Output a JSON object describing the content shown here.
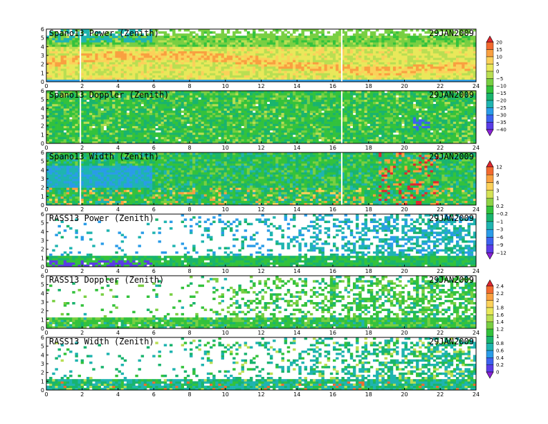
{
  "chart_data": [
    {
      "type": "heatmap",
      "title": "Spano13 Power (Zenith)",
      "date": "29JAN2009",
      "x_ticks": [
        "0",
        "2",
        "4",
        "6",
        "8",
        "10",
        "12",
        "14",
        "16",
        "18",
        "20",
        "22",
        "24"
      ],
      "y_ticks": [
        "0",
        "1",
        "2",
        "3",
        "4",
        "5",
        "6"
      ],
      "xlim": [
        0,
        24
      ],
      "ylim": [
        0,
        6
      ],
      "colorbar": "cb1",
      "pattern": "power_spano",
      "grid": false,
      "legend": "right"
    },
    {
      "type": "heatmap",
      "title": "Spano13 Doppler (Zenith)",
      "date": "29JAN2009",
      "x_ticks": [
        "0",
        "2",
        "4",
        "6",
        "8",
        "10",
        "12",
        "14",
        "16",
        "18",
        "20",
        "22",
        "24"
      ],
      "y_ticks": [
        "0",
        "1",
        "2",
        "3",
        "4",
        "5",
        "6"
      ],
      "xlim": [
        0,
        24
      ],
      "ylim": [
        0,
        6
      ],
      "colorbar": "cb1",
      "pattern": "doppler_spano",
      "grid": false,
      "legend": "right"
    },
    {
      "type": "heatmap",
      "title": "Spano13 Width (Zenith)",
      "date": "29JAN2009",
      "x_ticks": [
        "0",
        "2",
        "4",
        "6",
        "8",
        "10",
        "12",
        "14",
        "16",
        "18",
        "20",
        "22",
        "24"
      ],
      "y_ticks": [
        "0",
        "1",
        "2",
        "3",
        "4",
        "5",
        "6"
      ],
      "xlim": [
        0,
        24
      ],
      "ylim": [
        0,
        6
      ],
      "colorbar": "cb2",
      "pattern": "width_spano",
      "grid": false,
      "legend": "right"
    },
    {
      "type": "heatmap",
      "title": "RASS13 Power (Zenith)",
      "date": "29JAN2009",
      "x_ticks": [
        "0",
        "2",
        "4",
        "6",
        "8",
        "10",
        "12",
        "14",
        "16",
        "18",
        "20",
        "22",
        "24"
      ],
      "y_ticks": [
        "0",
        "1",
        "2",
        "3",
        "4",
        "5",
        "6"
      ],
      "xlim": [
        0,
        24
      ],
      "ylim": [
        0,
        6
      ],
      "colorbar": "cb2",
      "pattern": "power_rass",
      "grid": false,
      "legend": "right"
    },
    {
      "type": "heatmap",
      "title": "RASS13 Doppler (Zenith)",
      "date": "29JAN2009",
      "x_ticks": [
        "0",
        "2",
        "4",
        "6",
        "8",
        "10",
        "12",
        "14",
        "16",
        "18",
        "20",
        "22",
        "24"
      ],
      "y_ticks": [
        "0",
        "1",
        "2",
        "3",
        "4",
        "5",
        "6"
      ],
      "xlim": [
        0,
        24
      ],
      "ylim": [
        0,
        6
      ],
      "colorbar": "cb3",
      "pattern": "doppler_rass",
      "grid": false,
      "legend": "right"
    },
    {
      "type": "heatmap",
      "title": "RASS13 Width (Zenith)",
      "date": "29JAN2009",
      "x_ticks": [
        "0",
        "2",
        "4",
        "6",
        "8",
        "10",
        "12",
        "14",
        "16",
        "18",
        "20",
        "22",
        "24"
      ],
      "y_ticks": [
        "0",
        "1",
        "2",
        "3",
        "4",
        "5",
        "6"
      ],
      "xlim": [
        0,
        24
      ],
      "ylim": [
        0,
        6
      ],
      "colorbar": "cb3",
      "pattern": "width_rass",
      "grid": false,
      "legend": "right"
    }
  ],
  "colorbars": {
    "cb1": {
      "labels": [
        "20",
        "15",
        "10",
        "5",
        "0",
        "−5",
        "−10",
        "−15",
        "−20",
        "−25",
        "−30",
        "−35",
        "−40"
      ],
      "colors": [
        "#e0262f",
        "#f26a2f",
        "#f9a040",
        "#fbd15a",
        "#e9e85a",
        "#b9de52",
        "#78cf42",
        "#33c23c",
        "#19b46e",
        "#1fb4b0",
        "#2a9ce8",
        "#3d62ef",
        "#5a3ce6",
        "#8a22d8"
      ]
    },
    "cb2": {
      "labels": [
        "12",
        "9",
        "6",
        "3",
        "1",
        "0.2",
        "−0.2",
        "−1",
        "−3",
        "−6",
        "−9",
        "−12"
      ],
      "colors": [
        "#e0262f",
        "#f26a2f",
        "#f9a040",
        "#fbd15a",
        "#d4e256",
        "#8fd346",
        "#33c23c",
        "#19b46e",
        "#1fb4b0",
        "#2a9ce8",
        "#3d62ef",
        "#5a3ce6",
        "#8a22d8"
      ]
    },
    "cb3": {
      "labels": [
        "2.4",
        "2.2",
        "2",
        "1.8",
        "1.6",
        "1.4",
        "1.2",
        "1",
        "0.8",
        "0.6",
        "0.4",
        "0.2",
        "0"
      ],
      "colors": [
        "#e0262f",
        "#f26a2f",
        "#f9a040",
        "#fbd15a",
        "#e9e85a",
        "#b9de52",
        "#78cf42",
        "#33c23c",
        "#19b46e",
        "#1fb4b0",
        "#2a9ce8",
        "#3d62ef",
        "#5a3ce6",
        "#8a22d8"
      ]
    }
  }
}
